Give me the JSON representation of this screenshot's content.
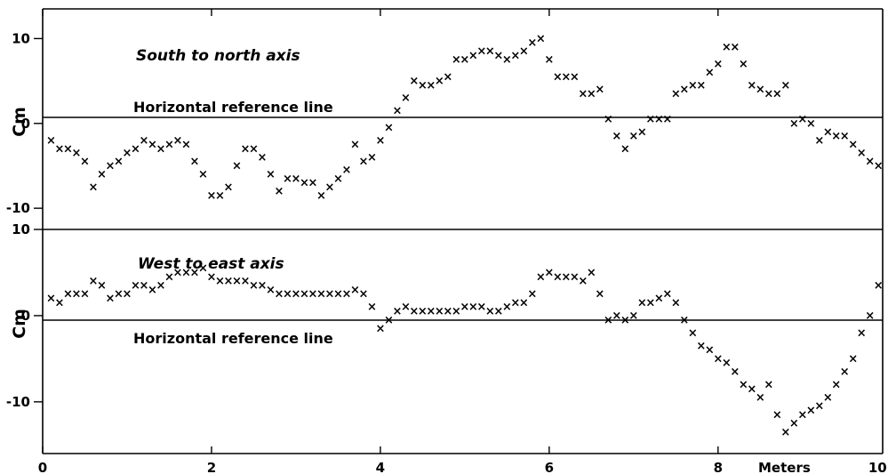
{
  "chart_data": [
    {
      "type": "scatter",
      "title": "South to north axis",
      "reference_line_label": "Horizontal reference line",
      "ylabel": "Cm",
      "xlabel": "Meters",
      "ylim": [
        -12.5,
        13.5
      ],
      "xlim": [
        0,
        9.95
      ],
      "y_ticks": [
        10,
        0,
        -10
      ],
      "x_ticks": [
        0,
        2,
        4,
        6,
        8,
        10
      ],
      "y_tick_labels": [
        "10",
        "0",
        "-10"
      ],
      "x_tick_labels": [
        "0",
        "2",
        "4",
        "6",
        "8",
        "10"
      ],
      "grid": false,
      "legend": "none",
      "series": [
        {
          "marker": "x",
          "x": [
            0.1,
            0.2,
            0.3,
            0.4,
            0.5,
            0.6,
            0.7,
            0.8,
            0.9,
            1.0,
            1.1,
            1.2,
            1.3,
            1.4,
            1.5,
            1.6,
            1.7,
            1.8,
            1.9,
            2.0,
            2.1,
            2.2,
            2.3,
            2.4,
            2.5,
            2.6,
            2.7,
            2.8,
            2.9,
            3.0,
            3.1,
            3.2,
            3.3,
            3.4,
            3.5,
            3.6,
            3.7,
            3.8,
            3.9,
            4.0,
            4.1,
            4.2,
            4.3,
            4.4,
            4.5,
            4.6,
            4.7,
            4.8,
            4.9,
            5.0,
            5.1,
            5.2,
            5.3,
            5.4,
            5.5,
            5.6,
            5.7,
            5.8,
            5.9,
            6.0,
            6.1,
            6.2,
            6.3,
            6.4,
            6.5,
            6.6,
            6.7,
            6.8,
            6.9,
            7.0,
            7.1,
            7.2,
            7.3,
            7.4,
            7.5,
            7.6,
            7.7,
            7.8,
            7.9,
            8.0,
            8.1,
            8.2,
            8.3,
            8.4,
            8.5,
            8.6,
            8.7,
            8.8,
            8.9,
            9.0,
            9.1,
            9.2,
            9.3,
            9.4,
            9.5,
            9.6,
            9.7,
            9.8,
            9.9
          ],
          "y": [
            -2,
            -3,
            -3,
            -3.5,
            -4.5,
            -7.5,
            -6,
            -5,
            -4.5,
            -3.5,
            -3,
            -2,
            -2.5,
            -3,
            -2.5,
            -2,
            -2.5,
            -4.5,
            -6,
            -8.5,
            -8.5,
            -7.5,
            -5,
            -3,
            -3,
            -4,
            -6,
            -8,
            -6.5,
            -6.5,
            -7,
            -7,
            -8.5,
            -7.5,
            -6.5,
            -5.5,
            -2.5,
            -4.5,
            -4,
            -2,
            -0.5,
            1.5,
            3,
            5,
            4.5,
            4.5,
            5,
            5.5,
            7.5,
            7.5,
            8,
            8.5,
            8.5,
            8,
            7.5,
            8,
            8.5,
            9.5,
            10,
            7.5,
            5.5,
            5.5,
            5.5,
            3.5,
            3.5,
            4,
            0.5,
            -1.5,
            -3,
            -1.5,
            -1,
            0.5,
            0.5,
            0.5,
            3.5,
            4,
            4.5,
            4.5,
            6,
            7,
            9,
            9,
            7,
            4.5,
            4,
            3.5,
            3.5,
            4.5,
            0,
            0.5,
            0,
            -2,
            -1,
            -1.5,
            -1.5,
            -2.5,
            -3.5,
            -4.5,
            -5
          ]
        }
      ]
    },
    {
      "type": "scatter",
      "title": "West to east axis",
      "reference_line_label": "Horizontal reference line",
      "ylabel": "Cm",
      "xlabel": "Meters",
      "ylim": [
        -16,
        10
      ],
      "xlim": [
        0,
        9.95
      ],
      "y_ticks": [
        10,
        0,
        -10
      ],
      "x_ticks": [
        0,
        2,
        4,
        6,
        8,
        10
      ],
      "y_tick_labels": [
        "10",
        "0",
        "-10"
      ],
      "x_tick_labels": [
        "0",
        "2",
        "4",
        "6",
        "8",
        "10"
      ],
      "grid": false,
      "legend": "none",
      "series": [
        {
          "marker": "x",
          "x": [
            0.1,
            0.2,
            0.3,
            0.4,
            0.5,
            0.6,
            0.7,
            0.8,
            0.9,
            1.0,
            1.1,
            1.2,
            1.3,
            1.4,
            1.5,
            1.6,
            1.7,
            1.8,
            1.9,
            2.0,
            2.1,
            2.2,
            2.3,
            2.4,
            2.5,
            2.6,
            2.7,
            2.8,
            2.9,
            3.0,
            3.1,
            3.2,
            3.3,
            3.4,
            3.5,
            3.6,
            3.7,
            3.8,
            3.9,
            4.0,
            4.1,
            4.2,
            4.3,
            4.4,
            4.5,
            4.6,
            4.7,
            4.8,
            4.9,
            5.0,
            5.1,
            5.2,
            5.3,
            5.4,
            5.5,
            5.6,
            5.7,
            5.8,
            5.9,
            6.0,
            6.1,
            6.2,
            6.3,
            6.4,
            6.5,
            6.6,
            6.7,
            6.8,
            6.9,
            7.0,
            7.1,
            7.2,
            7.3,
            7.4,
            7.5,
            7.6,
            7.7,
            7.8,
            7.9,
            8.0,
            8.1,
            8.2,
            8.3,
            8.4,
            8.5,
            8.6,
            8.7,
            8.8,
            8.9,
            9.0,
            9.1,
            9.2,
            9.3,
            9.4,
            9.5,
            9.6,
            9.7,
            9.8,
            9.9
          ],
          "y": [
            2,
            1.5,
            2.5,
            2.5,
            2.5,
            4,
            3.5,
            2,
            2.5,
            2.5,
            3.5,
            3.5,
            3,
            3.5,
            4.5,
            5,
            5,
            5,
            5.5,
            4.5,
            4,
            4,
            4,
            4,
            3.5,
            3.5,
            3,
            2.5,
            2.5,
            2.5,
            2.5,
            2.5,
            2.5,
            2.5,
            2.5,
            2.5,
            3,
            2.5,
            1,
            -1.5,
            -0.5,
            0.5,
            1,
            0.5,
            0.5,
            0.5,
            0.5,
            0.5,
            0.5,
            1,
            1,
            1,
            0.5,
            0.5,
            1,
            1.5,
            1.5,
            2.5,
            4.5,
            5,
            4.5,
            4.5,
            4.5,
            4,
            5,
            2.5,
            -0.5,
            0,
            -0.5,
            0,
            1.5,
            1.5,
            2,
            2.5,
            1.5,
            -0.5,
            -2,
            -3.5,
            -4,
            -5,
            -5.5,
            -6.5,
            -8,
            -8.5,
            -9.5,
            -8,
            -11.5,
            -13.5,
            -12.5,
            -11.5,
            -11,
            -10.5,
            -9.5,
            -8,
            -6.5,
            -5,
            -2,
            0,
            3.5
          ]
        }
      ]
    }
  ]
}
